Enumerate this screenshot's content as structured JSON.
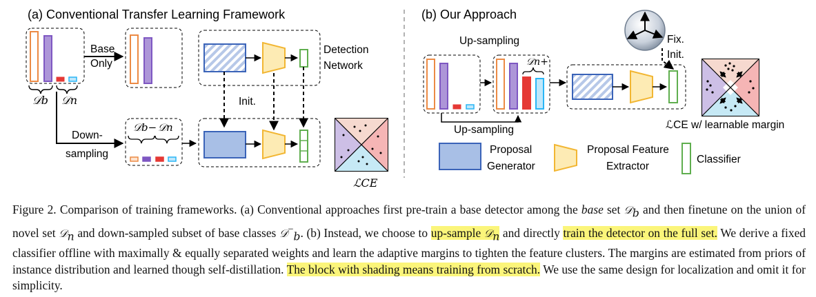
{
  "panel_a": {
    "title": "(a) Conventional Transfer Learning Framework",
    "base_only_1": "Base",
    "base_only_2": "Only",
    "detection_1": "Detection",
    "detection_2": "Network",
    "init": "Init.",
    "down_1": "Down-",
    "down_2": "sampling",
    "d_b": "𝒟b",
    "d_n": "𝒟n",
    "d_b_minus": "𝒟b−",
    "loss": "ℒCE"
  },
  "panel_b": {
    "title": "(b) Our Approach",
    "upsampling_top": "Up-sampling",
    "upsampling_bottom": "Up-sampling",
    "d_n_plus": "𝒟n+",
    "fix": "Fix.",
    "init": "Init.",
    "loss_caption": "ℒCE w/ learnable margin"
  },
  "legend": {
    "proposal_generator_1": "Proposal",
    "proposal_generator_2": "Generator",
    "feature_extractor_1": "Proposal Feature",
    "feature_extractor_2": "Extractor",
    "classifier": "Classifier"
  },
  "colors": {
    "orange": "#ec8a44",
    "purple": "#7e57c2",
    "red": "#e53935",
    "cyan": "#29b6f6",
    "blue_fill": "#a8bfe6",
    "blue_stroke": "#3a63b8",
    "yellow_fill": "#fdebb4",
    "yellow_stroke": "#f2b632",
    "green_stroke": "#5fae4e",
    "highlight": "#fbf57a"
  },
  "caption": {
    "s1": "Figure 2. Comparison of training frameworks. (a) Conventional approaches first pre-train a base detector among the ",
    "s1_base": "base",
    "s1b": " set ",
    "s1_db": "𝒟",
    "s1_db_sub": "b",
    "s2": " and then finetune on the union of novel set ",
    "s2_dn": "𝒟",
    "s2_dn_sub": "n",
    "s3": " and down-sampled subset of base classes ",
    "s3_db": "𝒟",
    "s3_db_sup": "−",
    "s3_db_sub": "b",
    "s4": ". (b) Instead, we choose to ",
    "hl1": "up-sample ",
    "hl1_dn": "𝒟",
    "hl1_dn_sub": "n",
    "s5": " and directly ",
    "hl2": "train the detector on the full set.",
    "s6": " We derive a fixed classifier offline with maximally & equally separated weights and learn the adaptive margins to tighten the feature clusters. The margins are estimated from priors of instance distribution and learned though self-distillation. ",
    "hl3": "The block with shading means training from scratch.",
    "s7": " We use the same design for localization and omit it for simplicity."
  }
}
